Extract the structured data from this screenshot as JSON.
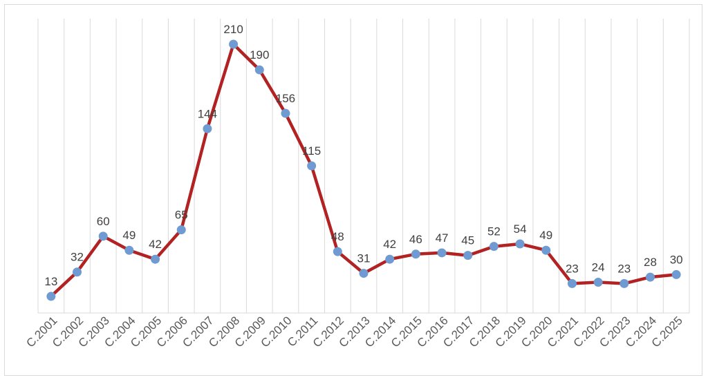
{
  "chart_data": {
    "type": "line",
    "title": "",
    "xlabel": "",
    "ylabel": "",
    "categories": [
      "C.2001",
      "C.2002",
      "C.2003",
      "C.2004",
      "C.2005",
      "C.2006",
      "C.2007",
      "C.2008",
      "C.2009",
      "C.2010",
      "C.2011",
      "C.2012",
      "C.2013",
      "C.2014",
      "C.2015",
      "C.2016",
      "C.2017",
      "C.2018",
      "C.2019",
      "C.2020",
      "C.2021",
      "C.2022",
      "C.2023",
      "C.2024",
      "C.2025"
    ],
    "series": [
      {
        "values": [
          13,
          32,
          60,
          49,
          42,
          65,
          144,
          210,
          190,
          156,
          115,
          48,
          31,
          42,
          46,
          47,
          45,
          52,
          54,
          49,
          23,
          24,
          23,
          28,
          30
        ],
        "line_color": "#b22222",
        "marker_color": "#6f9bd2"
      }
    ],
    "ylim": [
      0,
      230
    ],
    "grid": "vertical",
    "legend": "none",
    "data_labels": true,
    "gridline_color": "#d9d9d9"
  }
}
